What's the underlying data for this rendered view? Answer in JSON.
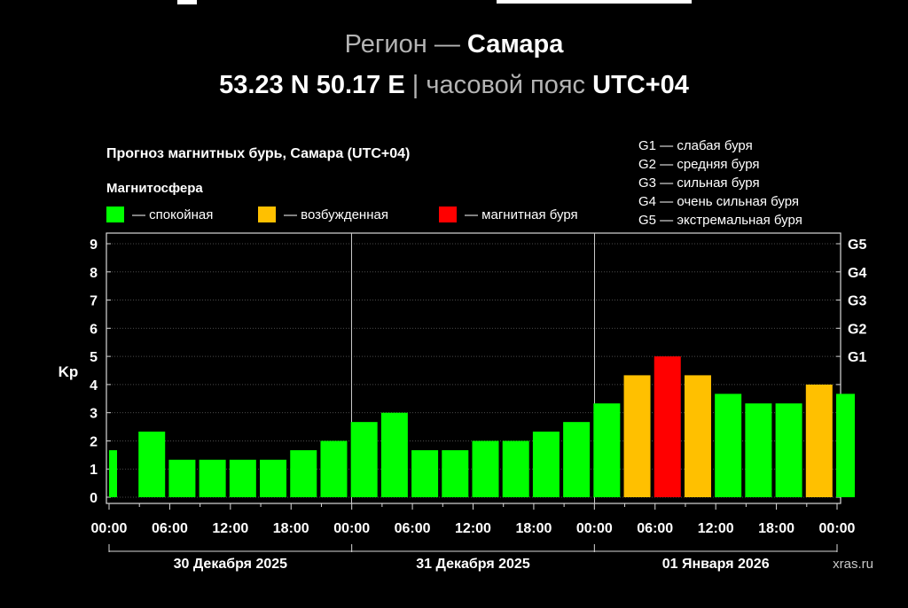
{
  "header": {
    "region_label": "Регион",
    "dash": "—",
    "region_name": "Самара",
    "coords": "53.23 N 50.17 E",
    "separator": "|",
    "tz_label": "часовой пояс",
    "tz_value": "UTC+04"
  },
  "colors": {
    "background": "#000000",
    "calm": "#00ff00",
    "excited": "#ffc000",
    "storm": "#ff0000"
  },
  "chart_data": {
    "type": "bar",
    "title": "Прогноз магнитных бурь, Самара (UTC+04)",
    "legend_title": "Магнитосфера",
    "legend": [
      {
        "label": "— спокойная",
        "color": "#00ff00"
      },
      {
        "label": "— возбужденная",
        "color": "#ffc000"
      },
      {
        "label": "— магнитная буря",
        "color": "#ff0000"
      }
    ],
    "g_scale": [
      "G1 — слабая буря",
      "G2 — средняя буря",
      "G3 — сильная буря",
      "G4 — очень сильная буря",
      "G5 — экстремальная буря"
    ],
    "ylabel": "Kp",
    "ylim": [
      0,
      9
    ],
    "yticks": [
      "0",
      "1",
      "2",
      "3",
      "4",
      "5",
      "6",
      "7",
      "8",
      "9"
    ],
    "right_ticks": [
      {
        "label": "G1",
        "kp": 5
      },
      {
        "label": "G2",
        "kp": 6
      },
      {
        "label": "G3",
        "kp": 7
      },
      {
        "label": "G4",
        "kp": 8
      },
      {
        "label": "G5",
        "kp": 9
      }
    ],
    "xticks": [
      "00:00",
      "06:00",
      "12:00",
      "18:00",
      "00:00",
      "06:00",
      "12:00",
      "18:00",
      "00:00",
      "06:00",
      "12:00",
      "18:00",
      "00:00"
    ],
    "days": [
      "30 Декабря 2025",
      "31 Декабря 2025",
      "01 Января 2026"
    ],
    "interval_hours": 3,
    "values": [
      1.67,
      2.33,
      1.33,
      1.33,
      1.33,
      1.33,
      1.67,
      2.0,
      2.67,
      3.0,
      1.67,
      1.67,
      2.0,
      2.0,
      2.33,
      2.67,
      3.33,
      4.33,
      5.0,
      4.33,
      3.67,
      3.33,
      3.33,
      4.0,
      3.67
    ],
    "levels": [
      "calm",
      "calm",
      "calm",
      "calm",
      "calm",
      "calm",
      "calm",
      "calm",
      "calm",
      "calm",
      "calm",
      "calm",
      "calm",
      "calm",
      "calm",
      "calm",
      "calm",
      "excited",
      "storm",
      "excited",
      "calm",
      "calm",
      "calm",
      "excited",
      "calm"
    ],
    "grid": true,
    "watermark": "xras.ru"
  }
}
